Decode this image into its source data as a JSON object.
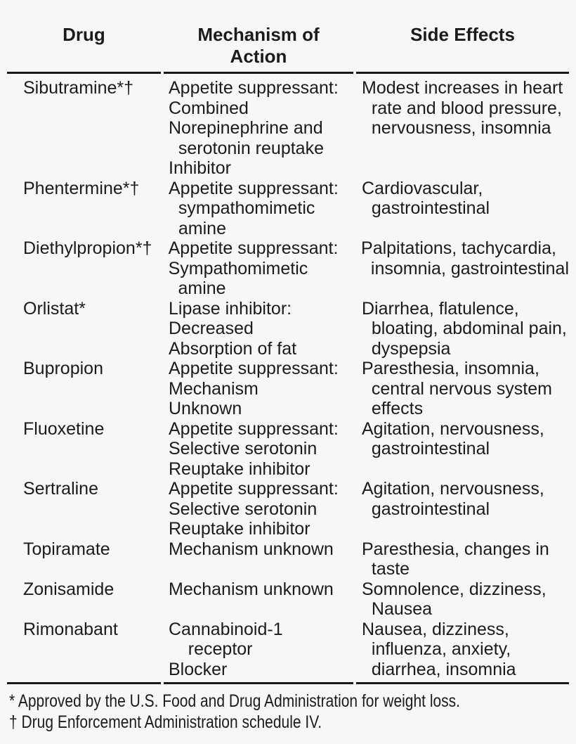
{
  "colors": {
    "background": "#f7f7f7",
    "text": "#1b1b1b",
    "rule": "#191919"
  },
  "table": {
    "headers": {
      "drug": "Drug",
      "mechanism": "Mechanism of\nAction",
      "side_effects": "Side Effects"
    },
    "rows": [
      {
        "drug": "Sibutramine*†",
        "mechanism": [
          "Appetite suppressant:",
          "Combined",
          "Norepinephrine and",
          "  serotonin reuptake",
          "Inhibitor"
        ],
        "side_effects": [
          "Modest increases in heart",
          "  rate and blood pressure,",
          "  nervousness, insomnia"
        ]
      },
      {
        "drug": "Phentermine*†",
        "mechanism": [
          "Appetite suppressant:",
          "  sympathomimetic",
          "  amine"
        ],
        "side_effects": [
          "Cardiovascular,",
          "  gastrointestinal"
        ]
      },
      {
        "drug": "Diethylpropion*†",
        "mechanism": [
          "Appetite suppressant:",
          "Sympathomimetic",
          "  amine"
        ],
        "side_effects": [
          "Palpitations, tachycardia,",
          "  insomnia, gastrointestinal"
        ]
      },
      {
        "drug": "Orlistat*",
        "mechanism": [
          "Lipase inhibitor:",
          "Decreased",
          "Absorption of fat"
        ],
        "side_effects": [
          "Diarrhea, flatulence,",
          "  bloating, abdominal pain,",
          "  dyspepsia"
        ]
      },
      {
        "drug": "Bupropion",
        "mechanism": [
          "Appetite suppressant:",
          "Mechanism",
          "Unknown"
        ],
        "side_effects": [
          "Paresthesia, insomnia,",
          "  central nervous system",
          "  effects"
        ]
      },
      {
        "drug": "Fluoxetine",
        "mechanism": [
          "Appetite suppressant:",
          "Selective serotonin",
          "Reuptake inhibitor"
        ],
        "side_effects": [
          "Agitation, nervousness,",
          "  gastrointestinal"
        ]
      },
      {
        "drug": "Sertraline",
        "mechanism": [
          "Appetite suppressant:",
          "Selective serotonin",
          "Reuptake inhibitor"
        ],
        "side_effects": [
          "Agitation, nervousness,",
          "  gastrointestinal"
        ]
      },
      {
        "drug": "Topiramate",
        "mechanism": [
          "Mechanism unknown"
        ],
        "side_effects": [
          "Paresthesia, changes in",
          "  taste"
        ]
      },
      {
        "drug": "Zonisamide",
        "mechanism": [
          "Mechanism unknown"
        ],
        "side_effects": [
          "Somnolence, dizziness,",
          "  Nausea"
        ]
      },
      {
        "drug": "Rimonabant",
        "mechanism": [
          "Cannabinoid-1",
          "    receptor",
          "Blocker"
        ],
        "side_effects": [
          "Nausea, dizziness,",
          "  influenza, anxiety,",
          "  diarrhea, insomnia"
        ]
      }
    ],
    "footnotes": [
      "* Approved by the U.S. Food and Drug Administration for weight loss.",
      "† Drug Enforcement Administration schedule IV."
    ]
  }
}
